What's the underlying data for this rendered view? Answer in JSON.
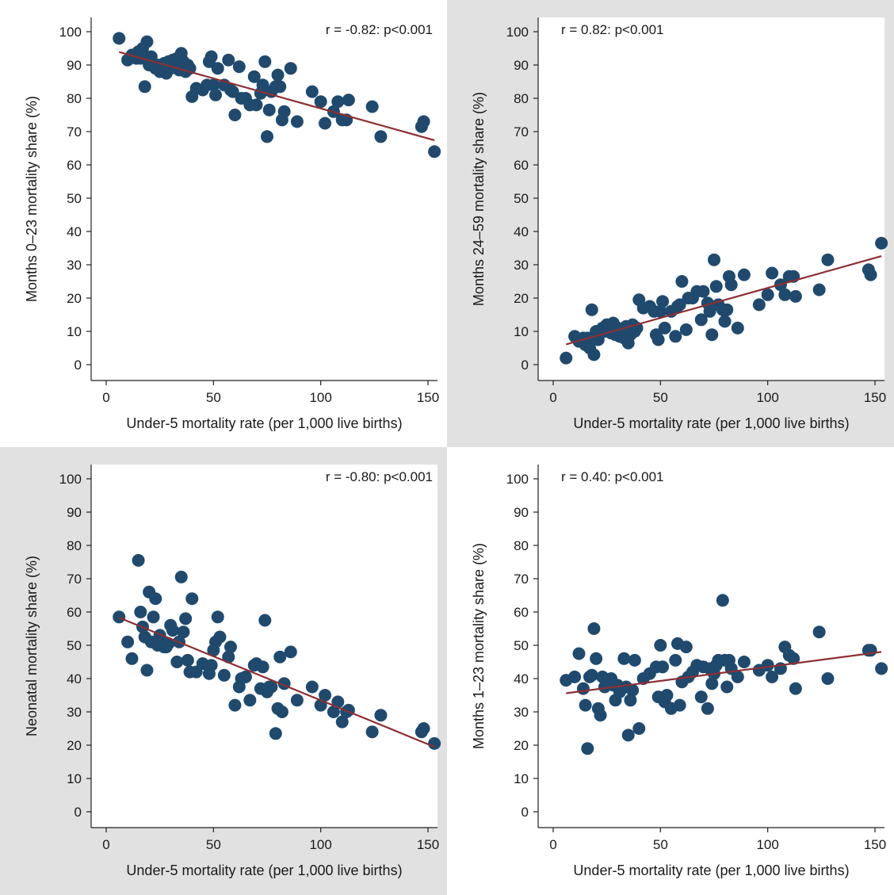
{
  "colors": {
    "point": "#1f4a6e",
    "fit_line": "#8e2f33",
    "axis": "#222222",
    "gray_panel_bg": "#e1e1e1"
  },
  "chart_data": [
    {
      "type": "scatter",
      "title": "",
      "annotation": "r = -0.82: p<0.001",
      "xlabel": "Under-5 mortality rate (per 1,000 live births)",
      "ylabel": "Months 0–23 mortality share (%)",
      "xlim": [
        0,
        155
      ],
      "ylim": [
        0,
        100
      ],
      "xticks": [
        "0",
        "50",
        "100",
        "150"
      ],
      "yticks": [
        "0",
        "10",
        "20",
        "30",
        "40",
        "50",
        "60",
        "70",
        "80",
        "90",
        "100"
      ],
      "background": "white",
      "fit_line": {
        "x": [
          6,
          153
        ],
        "y": [
          93.9,
          67.4
        ]
      },
      "points": {
        "x": [
          6,
          10,
          12,
          14,
          15,
          16,
          17,
          18,
          19,
          20,
          21,
          22,
          23,
          24,
          25,
          26,
          27,
          28,
          29,
          30,
          31,
          32,
          33,
          34,
          35,
          36,
          37,
          38,
          39,
          40,
          42,
          45,
          47,
          48,
          49,
          50,
          51,
          52,
          55,
          57,
          58,
          59,
          60,
          62,
          63,
          65,
          67,
          69,
          70,
          72,
          73,
          74,
          75,
          76,
          77,
          79,
          80,
          81,
          82,
          83,
          86,
          89,
          96,
          100,
          102,
          106,
          108,
          110,
          112,
          113,
          124,
          128,
          147,
          148,
          153
        ],
        "y": [
          98,
          91.5,
          93,
          92,
          94,
          92,
          95,
          83.5,
          97,
          90,
          92.5,
          90,
          89,
          90,
          88,
          89.5,
          90.5,
          87.5,
          91,
          89,
          91.5,
          89.5,
          92,
          88.5,
          93.5,
          91,
          88,
          90,
          89,
          80.5,
          83,
          82.5,
          84,
          91,
          92.5,
          84,
          81,
          89,
          84,
          91.5,
          82.5,
          82,
          75,
          89.5,
          80,
          80,
          78,
          86.5,
          78,
          81.5,
          84,
          91,
          68.5,
          76.5,
          82,
          83.5,
          87,
          83.5,
          73.5,
          76,
          89,
          73,
          82,
          79,
          72.5,
          76,
          79,
          73.5,
          73.5,
          79.5,
          77.5,
          68.5,
          71.5,
          73,
          64
        ]
      }
    },
    {
      "type": "scatter",
      "title": "",
      "annotation": "r = 0.82: p<0.001",
      "xlabel": "Under-5 mortality rate (per 1,000 live births)",
      "ylabel": "Months 24–59 mortality share (%)",
      "xlim": [
        0,
        155
      ],
      "ylim": [
        0,
        100
      ],
      "xticks": [
        "0",
        "50",
        "100",
        "150"
      ],
      "yticks": [
        "0",
        "10",
        "20",
        "30",
        "40",
        "50",
        "60",
        "70",
        "80",
        "90",
        "100"
      ],
      "background": "gray",
      "fit_line": {
        "x": [
          6,
          153
        ],
        "y": [
          6.1,
          32.6
        ]
      },
      "points": {
        "x": [
          6,
          10,
          12,
          14,
          15,
          16,
          17,
          18,
          19,
          20,
          21,
          22,
          23,
          24,
          25,
          26,
          27,
          28,
          29,
          30,
          31,
          32,
          33,
          34,
          35,
          36,
          37,
          38,
          39,
          40,
          42,
          45,
          47,
          48,
          49,
          50,
          51,
          52,
          55,
          57,
          58,
          59,
          60,
          62,
          63,
          65,
          67,
          69,
          70,
          72,
          73,
          74,
          75,
          76,
          77,
          79,
          80,
          81,
          82,
          83,
          86,
          89,
          96,
          100,
          102,
          106,
          108,
          110,
          112,
          113,
          124,
          128,
          147,
          148,
          153
        ],
        "y": [
          2,
          8.5,
          7,
          8,
          6,
          8,
          5,
          16.5,
          3,
          10,
          7.5,
          10,
          11,
          10,
          12,
          10.5,
          9.5,
          12.5,
          9,
          11,
          8.5,
          10.5,
          8,
          11.5,
          6.5,
          9,
          12,
          10,
          11,
          19.5,
          17,
          17.5,
          16,
          9,
          7.5,
          16,
          19,
          11,
          16,
          8.5,
          17.5,
          18,
          25,
          10.5,
          20,
          20,
          22,
          13.5,
          22,
          18.5,
          16,
          9,
          31.5,
          23.5,
          18,
          16.5,
          13,
          16.5,
          26.5,
          24,
          11,
          27,
          18,
          21,
          27.5,
          24,
          21,
          26.5,
          26.5,
          20.5,
          22.5,
          31.5,
          28.5,
          27,
          36.5
        ]
      }
    },
    {
      "type": "scatter",
      "title": "",
      "annotation": "r = -0.80: p<0.001",
      "xlabel": "Under-5 mortality rate (per 1,000 live births)",
      "ylabel": "Neonatal mortality share (%)",
      "xlim": [
        0,
        155
      ],
      "ylim": [
        0,
        100
      ],
      "xticks": [
        "0",
        "50",
        "100",
        "150"
      ],
      "yticks": [
        "0",
        "10",
        "20",
        "30",
        "40",
        "50",
        "60",
        "70",
        "80",
        "90",
        "100"
      ],
      "background": "gray",
      "fit_line": {
        "x": [
          6,
          153
        ],
        "y": [
          58.3,
          19.5
        ]
      },
      "points": {
        "x": [
          6,
          10,
          12,
          15,
          16,
          17,
          18,
          19,
          20,
          21,
          22,
          23,
          24,
          25,
          26,
          27,
          28,
          29,
          30,
          31,
          33,
          34,
          35,
          36,
          37,
          38,
          39,
          40,
          42,
          45,
          48,
          49,
          50,
          51,
          52,
          53,
          55,
          57,
          58,
          60,
          62,
          63,
          65,
          67,
          69,
          70,
          72,
          73,
          74,
          75,
          76,
          77,
          79,
          80,
          81,
          82,
          83,
          86,
          89,
          96,
          100,
          102,
          106,
          108,
          110,
          112,
          113,
          124,
          128,
          147,
          148,
          153
        ],
        "y": [
          58.5,
          51,
          46,
          75.5,
          60,
          55.5,
          52.5,
          42.5,
          66,
          51,
          58.5,
          64,
          50,
          53,
          50.5,
          49.5,
          49.5,
          50.5,
          56,
          54.5,
          45,
          51,
          70.5,
          54,
          58,
          45.5,
          42,
          64,
          42,
          44.5,
          41.5,
          44,
          48.5,
          51,
          58.5,
          52.5,
          41,
          46.5,
          49.5,
          32,
          37.5,
          40,
          40.5,
          33.5,
          44,
          44.5,
          37,
          43.5,
          57.5,
          36,
          37.5,
          37.5,
          23.5,
          31,
          46.5,
          30,
          38.5,
          48,
          33.5,
          37.5,
          32,
          35,
          30,
          33,
          27,
          30,
          30.5,
          24,
          29,
          24,
          25,
          20.5
        ]
      }
    },
    {
      "type": "scatter",
      "title": "",
      "annotation": "r = 0.40: p<0.001",
      "xlabel": "Under-5 mortality rate (per 1,000 live births)",
      "ylabel": "Months 1–23 mortality share (%)",
      "xlim": [
        0,
        155
      ],
      "ylim": [
        0,
        100
      ],
      "xticks": [
        "0",
        "50",
        "100",
        "150"
      ],
      "yticks": [
        "0",
        "10",
        "20",
        "30",
        "40",
        "50",
        "60",
        "70",
        "80",
        "90",
        "100"
      ],
      "background": "white",
      "fit_line": {
        "x": [
          6,
          153
        ],
        "y": [
          35.6,
          48.0
        ]
      },
      "points": {
        "x": [
          6,
          10,
          12,
          14,
          15,
          16,
          17,
          18,
          19,
          20,
          21,
          22,
          23,
          24,
          25,
          26,
          27,
          28,
          29,
          30,
          31,
          33,
          34,
          35,
          36,
          37,
          38,
          40,
          42,
          45,
          48,
          49,
          50,
          51,
          52,
          53,
          55,
          57,
          58,
          59,
          60,
          62,
          63,
          65,
          67,
          69,
          70,
          72,
          73,
          74,
          75,
          76,
          77,
          79,
          80,
          81,
          82,
          83,
          86,
          89,
          96,
          100,
          102,
          106,
          108,
          110,
          112,
          113,
          124,
          128,
          147,
          148,
          153
        ],
        "y": [
          39.5,
          40.5,
          47.5,
          37,
          32,
          19,
          40.5,
          41,
          55,
          46,
          31,
          29,
          40.5,
          37.5,
          38,
          39.5,
          40,
          38,
          33.5,
          38,
          36,
          46,
          37.5,
          23,
          33.5,
          36.5,
          45.5,
          25,
          40,
          41.5,
          43.5,
          34.5,
          50,
          43.5,
          33,
          35,
          31,
          45.5,
          50.5,
          32,
          39,
          49.5,
          40.5,
          42,
          44,
          34.5,
          43.5,
          31,
          43,
          38.5,
          41.5,
          44,
          45.5,
          63.5,
          45.5,
          37.5,
          45.5,
          43,
          40.5,
          45,
          42.5,
          44,
          40.5,
          43,
          49.5,
          47,
          46,
          37,
          54,
          40,
          48.5,
          48.5,
          43
        ]
      }
    }
  ]
}
